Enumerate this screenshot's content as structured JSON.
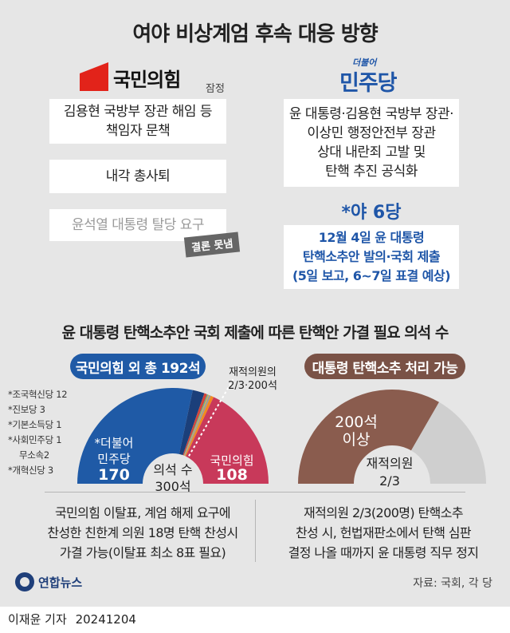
{
  "title": "여야 비상계엄 후속 대응 방향",
  "ppp": {
    "logo_text": "국민의힘",
    "tentative": "잠정",
    "items": [
      "김용현 국방부 장관 해임 등\n책임자 문책",
      "내각 총사퇴",
      "윤석열 대통령 탈당 요구"
    ],
    "no_conclusion": "결론 못냄"
  },
  "dp": {
    "logo_small": "더불어",
    "logo_text": "민주당",
    "item": "윤 대통령·김용현 국방부 장관·\n이상민 행정안전부 장관\n상대 내란죄 고발 및\n탄핵 추진 공식화",
    "opp_label": "*야 6당",
    "opp_item": "12월 4일 윤 대통령\n탄핵소추안 발의·국회 제출\n(5일 보고, 6~7일 표결 예상)"
  },
  "subtitle": "윤 대통령 탄핵소추안 국회 제출에 따른 탄핵안 가결 필요 의석 수",
  "chart_data": [
    {
      "type": "pie",
      "title": "국민의힘 외 총 192석",
      "layout": "semicircle",
      "total_label": "의석 수\n300석",
      "slices": [
        {
          "name": "*더불어\n민주당",
          "value": 170,
          "color": "#1f5aa6"
        },
        {
          "name": "조국혁신당",
          "value": 12,
          "color": "#1b3f7a"
        },
        {
          "name": "진보당",
          "value": 3,
          "color": "#d4453a"
        },
        {
          "name": "기본소득당",
          "value": 1,
          "color": "#3cb6a3"
        },
        {
          "name": "사회민주당",
          "value": 1,
          "color": "#e9a23b"
        },
        {
          "name": "무소속",
          "value": 2,
          "color": "#9a9a9a"
        },
        {
          "name": "개혁신당",
          "value": 3,
          "color": "#f28a1e"
        },
        {
          "name": "국민의힘",
          "value": 108,
          "color": "#c8395a"
        }
      ],
      "small_party_labels": [
        "*조국혁신당 12",
        "*진보당 3",
        "*기본소득당 1",
        "*사회민주당 1",
        "무소속2",
        "*개혁신당 3"
      ],
      "annotation": "재적의원의\n2/3·200석"
    },
    {
      "type": "pie",
      "title": "대통령 탄핵소추 처리 가능",
      "layout": "semicircle",
      "slices": [
        {
          "name": "200석\n이상",
          "value": 200,
          "color": "#8a5c4e"
        },
        {
          "name": "rest",
          "value": 100,
          "color": "#cfcfcf"
        }
      ],
      "bottom_label": "재적의원\n2/3"
    }
  ],
  "bottom": {
    "left": "국민의힘 이탈표, 계엄 해제 요구에\n찬성한 친한계 의원 18명 탄핵 찬성시\n가결 가능(이탈표 최소 8표 필요)",
    "right": "재적의원 2/3(200명) 탄핵소추\n찬성 시, 헌법재판소에서 탄핵 심판\n결정 나올 때까지 윤 대통령 직무 정지"
  },
  "footer": {
    "agency": "연합뉴스",
    "source": "자료: 국회, 각 당",
    "author": "이재윤 기자",
    "date": "20241204"
  },
  "colors": {
    "ppp_red": "#e2231a",
    "dp_blue": "#1f56a8",
    "chart_blue": "#1f5aa6",
    "ppp_pink": "#c8395a",
    "brown": "#8a5c4e",
    "background": "#e6e6e6"
  }
}
